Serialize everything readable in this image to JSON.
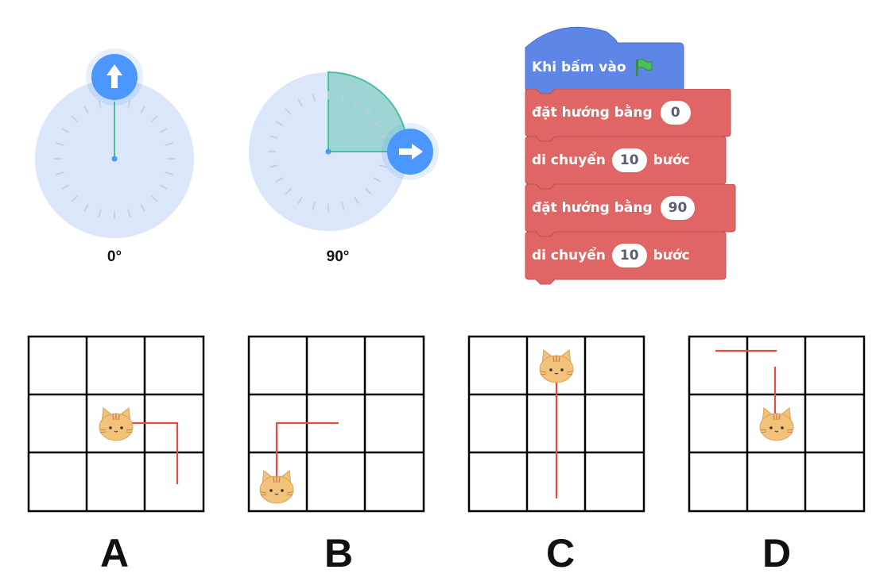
{
  "dials": [
    {
      "label": "0°",
      "degrees": 0,
      "arrow_icon": "arrow-up-icon"
    },
    {
      "label": "90°",
      "degrees": 90,
      "arrow_icon": "arrow-right-icon"
    }
  ],
  "script_blocks": {
    "hat": {
      "text": "Khi bấm vào",
      "icon": "green-flag-icon"
    },
    "set_dir_1": {
      "text": "đặt hướng bằng",
      "value": "0"
    },
    "move_1": {
      "text_before": "di chuyển",
      "value": "10",
      "text_after": "bước"
    },
    "set_dir_2": {
      "text": "đặt hướng bằng",
      "value": "90"
    },
    "move_2": {
      "text_before": "di chuyển",
      "value": "10",
      "text_after": "bước"
    }
  },
  "options": [
    {
      "label": "A"
    },
    {
      "label": "B"
    },
    {
      "label": "C"
    },
    {
      "label": "D"
    }
  ],
  "colors": {
    "dial_face": "#dbe6fb",
    "dial_accent": "#4c97ff",
    "dial_needle": "#4cbf9a",
    "sector_fill": "#9fd4d4",
    "hat_block": "#5d86e6",
    "motion_block": "#e06666",
    "path_line": "#e84a3c",
    "grid": "#000000",
    "flag": "#4cbf56"
  }
}
